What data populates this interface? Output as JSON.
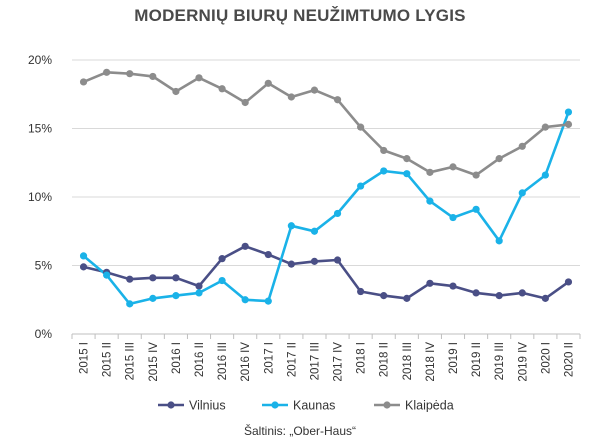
{
  "chart_data": {
    "type": "line",
    "title": "MODERNIŲ BIURŲ NEUŽIMTUMO LYGIS",
    "source": "Šaltinis: „Ober-Haus“",
    "xlabel": "",
    "ylabel": "",
    "ylim": [
      0,
      20
    ],
    "yticks": [
      "0%",
      "5%",
      "10%",
      "15%",
      "20%"
    ],
    "ytick_values": [
      0,
      5,
      10,
      15,
      20
    ],
    "grid": true,
    "legend_position": "bottom",
    "categories": [
      "2015 I",
      "2015 II",
      "2015 III",
      "2015 IV",
      "2016 I",
      "2016 II",
      "2016 III",
      "2016 IV",
      "2017 I",
      "2017 II",
      "2017 III",
      "2017 IV",
      "2018 I",
      "2018 II",
      "2018 III",
      "2018 IV",
      "2019 I",
      "2019 II",
      "2019 III",
      "2019 IV",
      "2020 I",
      "2020 II"
    ],
    "series": [
      {
        "name": "Vilnius",
        "color": "#4a4f86",
        "values": [
          4.9,
          4.5,
          4.0,
          4.1,
          4.1,
          3.5,
          5.5,
          6.4,
          5.8,
          5.1,
          5.3,
          5.4,
          3.1,
          2.8,
          2.6,
          3.7,
          3.5,
          3.0,
          2.8,
          3.0,
          2.6,
          3.8
        ]
      },
      {
        "name": "Kaunas",
        "color": "#1ab2e8",
        "values": [
          5.7,
          4.3,
          2.2,
          2.6,
          2.8,
          3.0,
          3.9,
          2.5,
          2.4,
          7.9,
          7.5,
          8.8,
          10.8,
          11.9,
          11.7,
          9.7,
          8.5,
          9.1,
          6.8,
          10.3,
          11.6,
          16.2
        ]
      },
      {
        "name": "Klaipėda",
        "color": "#8c8c8c",
        "values": [
          18.4,
          19.1,
          19.0,
          18.8,
          17.7,
          18.7,
          17.9,
          16.9,
          18.3,
          17.3,
          17.8,
          17.1,
          15.1,
          13.4,
          12.8,
          11.8,
          12.2,
          11.6,
          12.8,
          13.7,
          15.1,
          15.3
        ]
      }
    ]
  }
}
